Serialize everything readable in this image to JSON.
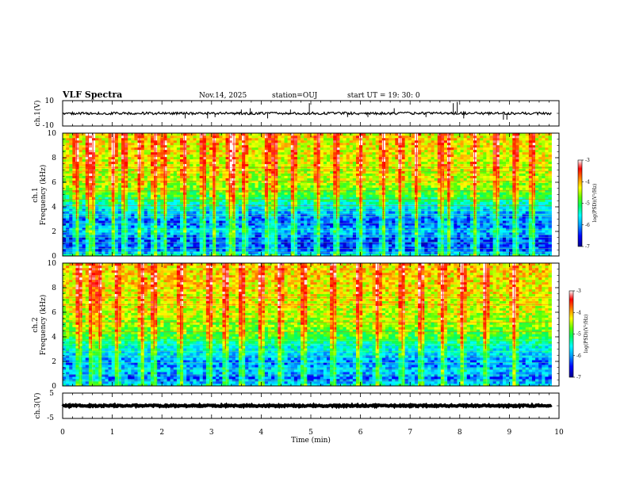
{
  "header": {
    "title": "VLF Spectra",
    "date": "Nov.14, 2025",
    "station": "station=OUJ",
    "start": "start  UT =   19: 30: 0"
  },
  "colors": {
    "spectrogram_scale": [
      "#00008b",
      "#0000ff",
      "#00a0ff",
      "#00ffff",
      "#00ff60",
      "#60ff00",
      "#ffff00",
      "#ff8000",
      "#ff0000",
      "#ffffff"
    ],
    "trace": "#000000",
    "axis": "#000000"
  },
  "chart_data": [
    {
      "type": "line",
      "name": "ch1-waveform",
      "ylabel": "ch.1(V)",
      "ylim": [
        -10,
        10
      ],
      "yticks": [
        "10",
        "-10"
      ],
      "xlim": [
        0,
        9.85
      ],
      "baseline_v": 0,
      "noise_amplitude_v": 1,
      "spikes": [
        {
          "t": 2.47,
          "v": -4
        },
        {
          "t": 2.92,
          "v": -4
        },
        {
          "t": 3.07,
          "v": -3
        },
        {
          "t": 3.6,
          "v": 3
        },
        {
          "t": 3.78,
          "v": 4
        },
        {
          "t": 4.13,
          "v": -4
        },
        {
          "t": 4.59,
          "v": 3
        },
        {
          "t": 4.97,
          "v": 8
        },
        {
          "t": 5.74,
          "v": -3
        },
        {
          "t": 6.15,
          "v": -3
        },
        {
          "t": 6.68,
          "v": 4
        },
        {
          "t": 7.32,
          "v": -3
        },
        {
          "t": 7.87,
          "v": 8
        },
        {
          "t": 7.95,
          "v": 9
        },
        {
          "t": 8.08,
          "v": -4
        },
        {
          "t": 8.88,
          "v": -5
        },
        {
          "t": 8.95,
          "v": -5
        }
      ]
    },
    {
      "type": "heatmap",
      "name": "ch1-spectrogram",
      "ylabel_top": "ch.1",
      "ylabel": "Frequency (kHz)",
      "ylim": [
        0,
        10
      ],
      "yticks": [
        "0",
        "2",
        "4",
        "6",
        "8",
        "10"
      ],
      "xlim": [
        0,
        9.85
      ],
      "colorbar": {
        "label": "log(PSD)(V²/Hz)",
        "range": [
          -7,
          -3
        ],
        "ticks": [
          "-3",
          "-4",
          "-5",
          "-6",
          "-7"
        ]
      },
      "mean_log_psd_profile": [
        {
          "f": 0,
          "v": -5.5
        },
        {
          "f": 0.5,
          "v": -6.4
        },
        {
          "f": 1.5,
          "v": -6.4
        },
        {
          "f": 2.0,
          "v": -5.9
        },
        {
          "f": 2.6,
          "v": -6.3
        },
        {
          "f": 3.2,
          "v": -6.2
        },
        {
          "f": 4.0,
          "v": -5.7
        },
        {
          "f": 5.0,
          "v": -5.0
        },
        {
          "f": 6.0,
          "v": -4.6
        },
        {
          "f": 8.0,
          "v": -4.4
        },
        {
          "f": 10.0,
          "v": -4.3
        }
      ],
      "vertical_bursts_min": [
        0.28,
        0.52,
        0.61,
        1.02,
        1.24,
        1.55,
        1.86,
        2.05,
        2.45,
        2.83,
        3.05,
        3.36,
        3.45,
        3.66,
        4.12,
        4.27,
        4.65,
        5.14,
        5.52,
        6.0,
        6.46,
        6.8,
        7.13,
        7.62,
        7.78,
        8.3,
        8.74,
        9.12,
        9.46
      ],
      "tones_khz": [
        0.3,
        0.6,
        1.1,
        1.5,
        1.75,
        2.15,
        2.65,
        3.2,
        3.4,
        3.7,
        4.1,
        4.6,
        5.3,
        6.1,
        6.9,
        7.2
      ]
    },
    {
      "type": "heatmap",
      "name": "ch2-spectrogram",
      "ylabel_top": "ch.2",
      "ylabel": "Frequency (kHz)",
      "ylim": [
        0,
        10
      ],
      "yticks": [
        "0",
        "2",
        "4",
        "6",
        "8",
        "10"
      ],
      "xlim": [
        0,
        9.85
      ],
      "colorbar": {
        "label": "log(PSD)(V²/Hz)",
        "range": [
          -7,
          -3
        ],
        "ticks": [
          "-3",
          "-4",
          "-5",
          "-6",
          "-7"
        ]
      },
      "mean_log_psd_profile": [
        {
          "f": 0,
          "v": -5.6
        },
        {
          "f": 0.6,
          "v": -6.3
        },
        {
          "f": 1.2,
          "v": -5.9
        },
        {
          "f": 1.9,
          "v": -6.2
        },
        {
          "f": 2.6,
          "v": -5.8
        },
        {
          "f": 3.3,
          "v": -5.6
        },
        {
          "f": 4.0,
          "v": -5.0
        },
        {
          "f": 5.0,
          "v": -4.7
        },
        {
          "f": 6.0,
          "v": -4.5
        },
        {
          "f": 8.0,
          "v": -4.3
        },
        {
          "f": 10.0,
          "v": -4.2
        }
      ],
      "vertical_bursts_min": [
        0.33,
        0.58,
        0.74,
        1.1,
        1.6,
        1.84,
        2.38,
        2.96,
        3.28,
        3.61,
        4.0,
        4.38,
        4.86,
        5.45,
        5.96,
        6.35,
        6.84,
        7.22,
        7.66,
        8.05,
        8.52,
        9.1
      ],
      "tones_khz": [
        0.4,
        0.9,
        1.4,
        1.9,
        2.4,
        2.8,
        3.4,
        3.7,
        4.4,
        5.2,
        6.6,
        7.2
      ]
    },
    {
      "type": "line",
      "name": "ch3-waveform",
      "ylabel": "ch.3(V)",
      "ylim": [
        -5,
        5
      ],
      "yticks": [
        "5",
        "-5"
      ],
      "xlim": [
        0,
        9.85
      ],
      "baseline_v": 0,
      "noise_amplitude_v": 0.3
    }
  ],
  "xaxis": {
    "label": "Time (min)",
    "range": [
      0,
      10
    ],
    "ticks": [
      "0",
      "1",
      "2",
      "3",
      "4",
      "5",
      "6",
      "7",
      "8",
      "9",
      "10"
    ]
  }
}
